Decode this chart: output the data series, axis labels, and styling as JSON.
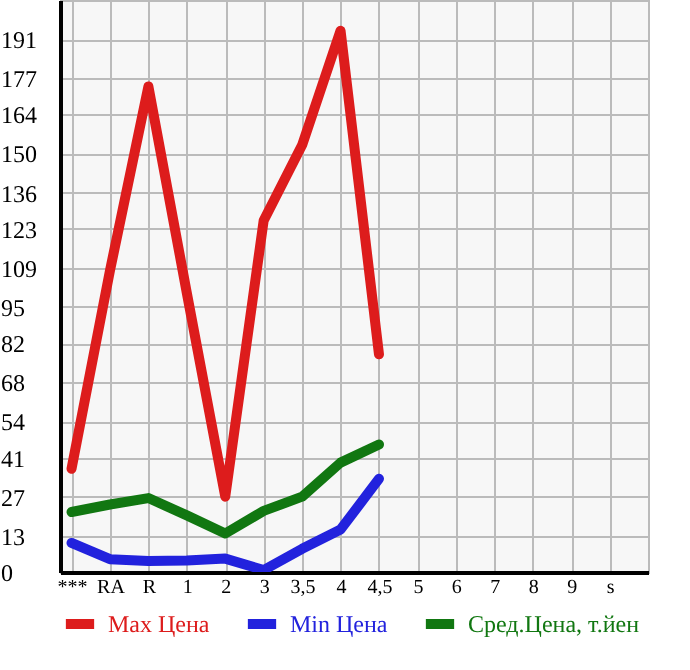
{
  "chart_data": {
    "type": "line",
    "categories": [
      "***",
      "RA",
      "R",
      "1",
      "2",
      "3",
      "3,5",
      "4",
      "4,5",
      "5",
      "6",
      "7",
      "8",
      "9",
      "s"
    ],
    "series": [
      {
        "name": "Max Цена",
        "color": "#dd1c1c",
        "values": [
          37,
          108,
          174,
          100,
          27,
          126,
          153,
          194,
          78,
          null,
          null,
          null,
          null,
          null,
          null
        ]
      },
      {
        "name": "Min Цена",
        "color": "#2222dd",
        "values": [
          10.4,
          4.6,
          3.9,
          4.1,
          4.8,
          0.7,
          8.3,
          15.2,
          33.4,
          null,
          null,
          null,
          null,
          null,
          null
        ]
      },
      {
        "name": "Сред.Цена, т.йен",
        "color": "#117711",
        "values": [
          21.5,
          24.2,
          26.5,
          20.3,
          13.8,
          21.9,
          27,
          39.2,
          45.7,
          null,
          null,
          null,
          null,
          null,
          null
        ]
      }
    ],
    "ylim": [
      0,
      205
    ],
    "yticks": [
      0,
      13,
      27,
      41,
      54,
      68,
      82,
      95,
      109,
      123,
      136,
      150,
      164,
      177,
      191
    ],
    "grid": true,
    "legend": "bottom"
  }
}
